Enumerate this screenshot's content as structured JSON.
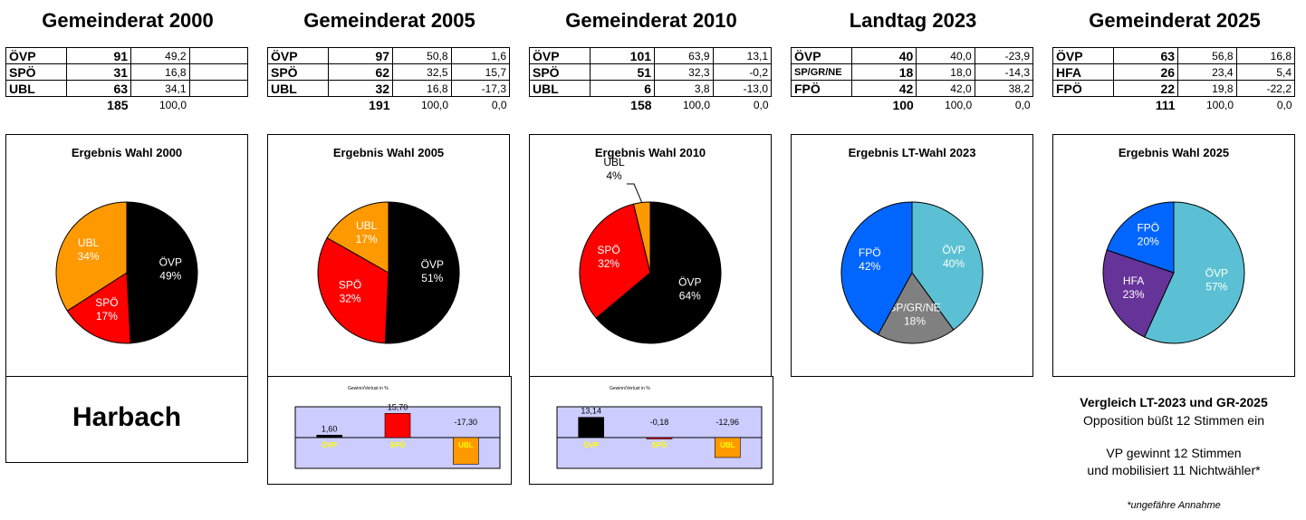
{
  "columns": [
    {
      "heading": "Gemeinderat 2000",
      "rows": [
        {
          "party": "ÖVP",
          "seats": "91",
          "pct": "49,2",
          "diff": ""
        },
        {
          "party": "SPÖ",
          "seats": "31",
          "pct": "16,8",
          "diff": ""
        },
        {
          "party": "UBL",
          "seats": "63",
          "pct": "34,1",
          "diff": ""
        }
      ],
      "total": {
        "seats": "185",
        "pct": "100,0",
        "diff": ""
      }
    },
    {
      "heading": "Gemeinderat 2005",
      "rows": [
        {
          "party": "ÖVP",
          "seats": "97",
          "pct": "50,8",
          "diff": "1,6"
        },
        {
          "party": "SPÖ",
          "seats": "62",
          "pct": "32,5",
          "diff": "15,7"
        },
        {
          "party": "UBL",
          "seats": "32",
          "pct": "16,8",
          "diff": "-17,3"
        }
      ],
      "total": {
        "seats": "191",
        "pct": "100,0",
        "diff": "0,0"
      }
    },
    {
      "heading": "Gemeinderat 2010",
      "rows": [
        {
          "party": "ÖVP",
          "seats": "101",
          "pct": "63,9",
          "diff": "13,1"
        },
        {
          "party": "SPÖ",
          "seats": "51",
          "pct": "32,3",
          "diff": "-0,2"
        },
        {
          "party": "UBL",
          "seats": "6",
          "pct": "3,8",
          "diff": "-13,0"
        }
      ],
      "total": {
        "seats": "158",
        "pct": "100,0",
        "diff": "0,0"
      }
    },
    {
      "heading": "Landtag 2023",
      "rows": [
        {
          "party": "ÖVP",
          "seats": "40",
          "pct": "40,0",
          "diff": "-23,9"
        },
        {
          "party": "SP/GR/NE",
          "seats": "18",
          "pct": "18,0",
          "diff": "-14,3"
        },
        {
          "party": "FPÖ",
          "seats": "42",
          "pct": "42,0",
          "diff": "38,2"
        }
      ],
      "total": {
        "seats": "100",
        "pct": "100,0",
        "diff": "0,0"
      }
    },
    {
      "heading": "Gemeinderat 2025",
      "rows": [
        {
          "party": "ÖVP",
          "seats": "63",
          "pct": "56,8",
          "diff": "16,8"
        },
        {
          "party": "HFA",
          "seats": "26",
          "pct": "23,4",
          "diff": "5,4"
        },
        {
          "party": "FPÖ",
          "seats": "22",
          "pct": "19,8",
          "diff": "-22,2"
        }
      ],
      "total": {
        "seats": "111",
        "pct": "100,0",
        "diff": "0,0"
      }
    }
  ],
  "place_name": "Harbach",
  "notes": {
    "comparison_title": "Vergleich LT-2023 und GR-2025",
    "line1": "Opposition büßt 12 Stimmen ein",
    "line2": "VP gewinnt 12 Stimmen",
    "line3": "und mobilisiert 11 Nichtwähler*",
    "footnote": "*ungefähre Annahme"
  },
  "chart_data": [
    {
      "type": "pie",
      "title": "Ergebnis Wahl 2000",
      "slices": [
        {
          "label": "ÖVP",
          "pct_label": "49%",
          "value": 49.2,
          "color": "#000000",
          "text_color": "#ffffff"
        },
        {
          "label": "SPÖ",
          "pct_label": "17%",
          "value": 16.8,
          "color": "#ff0000",
          "text_color": "#ffffff"
        },
        {
          "label": "UBL",
          "pct_label": "34%",
          "value": 34.1,
          "color": "#ff9900",
          "text_color": "#ffffff"
        }
      ]
    },
    {
      "type": "pie",
      "title": "Ergebnis Wahl 2005",
      "slices": [
        {
          "label": "ÖVP",
          "pct_label": "51%",
          "value": 50.8,
          "color": "#000000",
          "text_color": "#ffffff"
        },
        {
          "label": "SPÖ",
          "pct_label": "32%",
          "value": 32.5,
          "color": "#ff0000",
          "text_color": "#ffffff"
        },
        {
          "label": "UBL",
          "pct_label": "17%",
          "value": 16.8,
          "color": "#ff9900",
          "text_color": "#ffffff"
        }
      ]
    },
    {
      "type": "pie",
      "title": "Ergebnis Wahl 2010",
      "slices": [
        {
          "label": "ÖVP",
          "pct_label": "64%",
          "value": 63.9,
          "color": "#000000",
          "text_color": "#ffffff"
        },
        {
          "label": "SPÖ",
          "pct_label": "32%",
          "value": 32.3,
          "color": "#ff0000",
          "text_color": "#ffffff"
        },
        {
          "label": "UBL",
          "pct_label": "4%",
          "value": 3.8,
          "color": "#ff9900",
          "text_color": "#000000",
          "outside": true
        }
      ]
    },
    {
      "type": "pie",
      "title": "Ergebnis LT-Wahl 2023",
      "slices": [
        {
          "label": "ÖVP",
          "pct_label": "40%",
          "value": 40.0,
          "color": "#5bc0d3",
          "text_color": "#ffffff"
        },
        {
          "label": "SP/GR/NE",
          "pct_label": "18%",
          "value": 18.0,
          "color": "#808080",
          "text_color": "#ffffff"
        },
        {
          "label": "FPÖ",
          "pct_label": "42%",
          "value": 42.0,
          "color": "#0066ff",
          "text_color": "#ffffff"
        }
      ]
    },
    {
      "type": "pie",
      "title": "Ergebnis Wahl 2025",
      "slices": [
        {
          "label": "ÖVP",
          "pct_label": "57%",
          "value": 56.8,
          "color": "#5bc0d3",
          "text_color": "#ffffff"
        },
        {
          "label": "HFA",
          "pct_label": "23%",
          "value": 23.4,
          "color": "#663399",
          "text_color": "#ffffff"
        },
        {
          "label": "FPÖ",
          "pct_label": "20%",
          "value": 19.8,
          "color": "#0066ff",
          "text_color": "#ffffff"
        }
      ]
    },
    {
      "type": "bar",
      "title": "Gewinn/Verlust in %",
      "categories": [
        "ÖVP",
        "SPÖ",
        "UBL"
      ],
      "values": [
        1.6,
        15.7,
        -17.3
      ],
      "value_labels": [
        "1,60",
        "15,70",
        "-17,30"
      ],
      "colors": [
        "#000000",
        "#ff0000",
        "#ff9900"
      ],
      "ylim": [
        -20,
        20
      ],
      "plot_bg": "#ccccff",
      "category_label_color": "#ffff00"
    },
    {
      "type": "bar",
      "title": "Gewinn/Verlust in %",
      "categories": [
        "ÖVP",
        "SPÖ",
        "UBL"
      ],
      "values": [
        13.14,
        -0.18,
        -12.96
      ],
      "value_labels": [
        "13,14",
        "-0,18",
        "-12,96"
      ],
      "colors": [
        "#000000",
        "#ff0000",
        "#ff9900"
      ],
      "ylim": [
        -20,
        20
      ],
      "plot_bg": "#ccccff",
      "category_label_color": "#ffff00"
    }
  ]
}
